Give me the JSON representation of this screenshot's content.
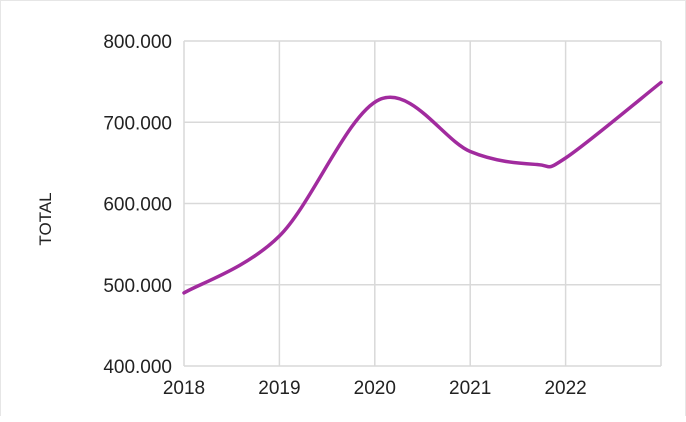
{
  "chart_data": {
    "type": "line",
    "title": "",
    "xlabel": "",
    "ylabel": "TOTAL",
    "x_ticks": [
      "2018",
      "2019",
      "2020",
      "2021",
      "2022"
    ],
    "y_ticks": [
      "400.000",
      "500.000",
      "600.000",
      "700.000",
      "800.000"
    ],
    "ylim": [
      400000,
      800000
    ],
    "xlim": [
      2018,
      2023
    ],
    "grid": true,
    "legend": "none",
    "series": [
      {
        "color": "#a12b9e",
        "points": [
          {
            "x": 2018.0,
            "y": 490000
          },
          {
            "x": 2019.0,
            "y": 560000
          },
          {
            "x": 2020.05,
            "y": 728000
          },
          {
            "x": 2021.0,
            "y": 664000
          },
          {
            "x": 2021.7,
            "y": 648000
          },
          {
            "x": 2022.0,
            "y": 656000
          },
          {
            "x": 2023.0,
            "y": 749000
          }
        ]
      }
    ]
  }
}
